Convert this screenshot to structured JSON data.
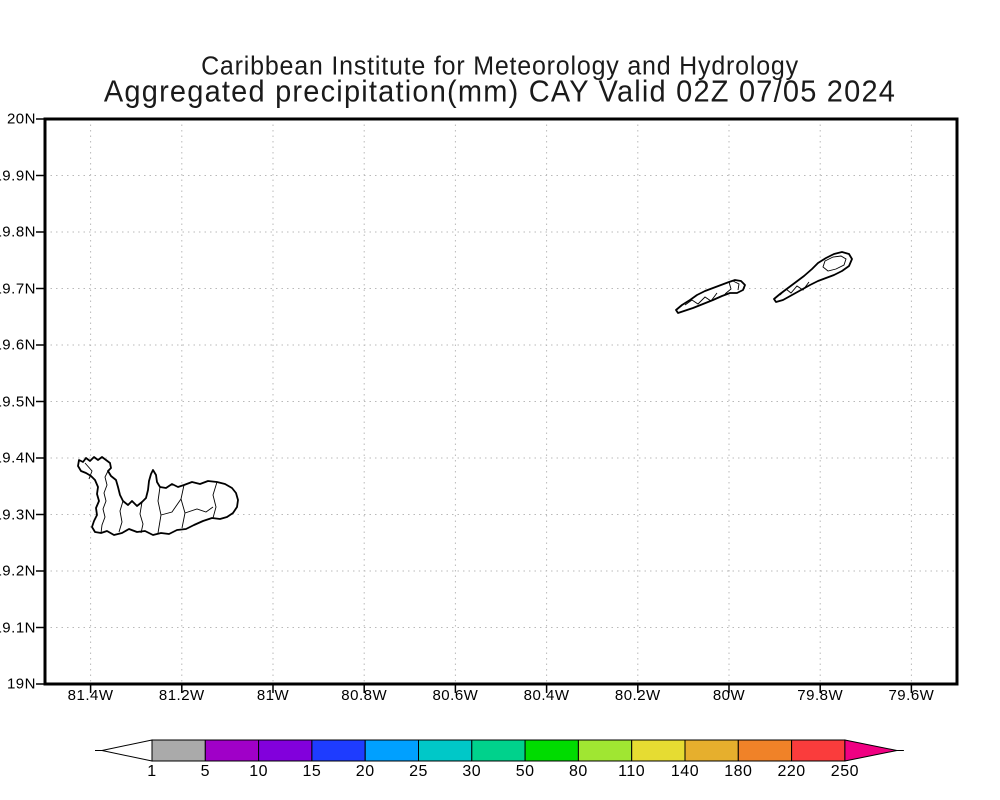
{
  "title": {
    "line1": "Caribbean Institute for Meteorology and Hydrology",
    "line2": "Aggregated precipitation(mm) CAY Valid 02Z 07/05 2024"
  },
  "map": {
    "x_axis_ticks": [
      {
        "label": "81.4W",
        "lon": 81.4
      },
      {
        "label": "81.2W",
        "lon": 81.2
      },
      {
        "label": "81W",
        "lon": 81.0
      },
      {
        "label": "80.8W",
        "lon": 80.8
      },
      {
        "label": "80.6W",
        "lon": 80.6
      },
      {
        "label": "80.4W",
        "lon": 80.4
      },
      {
        "label": "80.2W",
        "lon": 80.2
      },
      {
        "label": "80W",
        "lon": 80.0
      },
      {
        "label": "79.8W",
        "lon": 79.8
      },
      {
        "label": "79.6W",
        "lon": 79.6
      }
    ],
    "y_axis_ticks": [
      {
        "label": "20N",
        "lat": 20.0
      },
      {
        "label": "19.9N",
        "lat": 19.9
      },
      {
        "label": "19.8N",
        "lat": 19.8
      },
      {
        "label": "19.7N",
        "lat": 19.7
      },
      {
        "label": "19.6N",
        "lat": 19.6
      },
      {
        "label": "19.5N",
        "lat": 19.5
      },
      {
        "label": "19.4N",
        "lat": 19.4
      },
      {
        "label": "19.3N",
        "lat": 19.3
      },
      {
        "label": "19.2N",
        "lat": 19.2
      },
      {
        "label": "19.1N",
        "lat": 19.1
      },
      {
        "label": "19N",
        "lat": 19.0
      }
    ]
  },
  "colorbar": {
    "tick_labels": [
      "1",
      "5",
      "10",
      "15",
      "20",
      "25",
      "30",
      "50",
      "80",
      "110",
      "140",
      "180",
      "220",
      "250"
    ],
    "segment_colors": [
      "#aaaaaa",
      "#a000c8",
      "#8200dc",
      "#1e3cff",
      "#00a0ff",
      "#00c8c8",
      "#00d28c",
      "#00dc00",
      "#a0e632",
      "#e6dc32",
      "#e6af2d",
      "#f08228",
      "#fa3c3c"
    ],
    "below_min_color": "#ffffff",
    "above_max_color": "#f00082"
  },
  "colors": {
    "grid_line": "#b9b9b9",
    "frame": "#000000",
    "coastline": "#000000",
    "text": "#1a1a1a",
    "background": "#ffffff"
  }
}
